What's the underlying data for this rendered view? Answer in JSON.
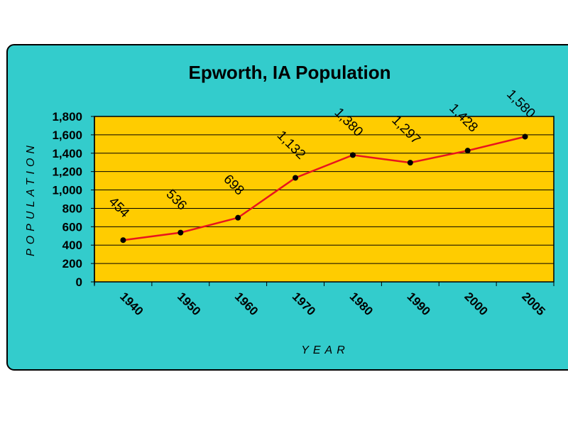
{
  "chart_data": {
    "type": "line",
    "title": "Epworth, IA Population",
    "xlabel": "YEAR",
    "ylabel": "POPULATION",
    "categories": [
      "1940",
      "1950",
      "1960",
      "1970",
      "1980",
      "1990",
      "2000",
      "2005"
    ],
    "values": [
      454,
      536,
      698,
      1132,
      1380,
      1297,
      1428,
      1580
    ],
    "data_labels": [
      "454",
      "536",
      "698",
      "1,132",
      "1,380",
      "1,297",
      "1,428",
      "1,580"
    ],
    "ylim": [
      0,
      1800
    ],
    "yticks": [
      0,
      200,
      400,
      600,
      800,
      1000,
      1200,
      1400,
      1600,
      1800
    ],
    "ytick_labels": [
      "0",
      "200",
      "400",
      "600",
      "800",
      "1,000",
      "1,200",
      "1,400",
      "1,600",
      "1,800"
    ],
    "grid": true,
    "colors": {
      "background": "#33CCCC",
      "plot_area": "#FFCC00",
      "line": "#E8141E",
      "marker": "#000000"
    }
  }
}
